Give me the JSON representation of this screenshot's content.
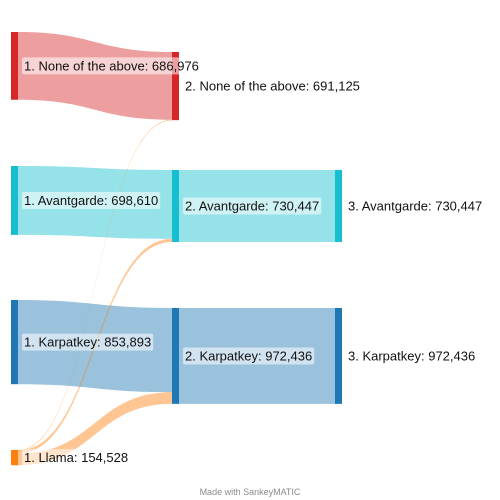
{
  "chart_data": {
    "type": "sankey",
    "colors": {
      "none": "#d62728",
      "avant": "#17becf",
      "karp": "#1f77b4",
      "llama": "#ff7f0e"
    },
    "nodes": [
      {
        "id": "n1",
        "label": "1. None of the above",
        "value": 686976,
        "stage": 1,
        "color_key": "none"
      },
      {
        "id": "a1",
        "label": "1. Avantgarde",
        "value": 698610,
        "stage": 1,
        "color_key": "avant"
      },
      {
        "id": "k1",
        "label": "1. Karpatkey",
        "value": 853893,
        "stage": 1,
        "color_key": "karp"
      },
      {
        "id": "l1",
        "label": "1. Llama",
        "value": 154528,
        "stage": 1,
        "color_key": "llama"
      },
      {
        "id": "n2",
        "label": "2. None of the above",
        "value": 691125,
        "stage": 2,
        "color_key": "none"
      },
      {
        "id": "a2",
        "label": "2. Avantgarde",
        "value": 730447,
        "stage": 2,
        "color_key": "avant"
      },
      {
        "id": "k2",
        "label": "2. Karpatkey",
        "value": 972436,
        "stage": 2,
        "color_key": "karp"
      },
      {
        "id": "a3",
        "label": "3. Avantgarde",
        "value": 730447,
        "stage": 3,
        "color_key": "avant"
      },
      {
        "id": "k3",
        "label": "3. Karpatkey",
        "value": 972436,
        "stage": 3,
        "color_key": "karp"
      }
    ],
    "links": [
      {
        "source": "n1",
        "target": "n2",
        "value": 686976
      },
      {
        "source": "a1",
        "target": "a2",
        "value": 698610
      },
      {
        "source": "k1",
        "target": "k2",
        "value": 853893
      },
      {
        "source": "l1",
        "target": "n2",
        "value": 4149
      },
      {
        "source": "l1",
        "target": "a2",
        "value": 31837
      },
      {
        "source": "l1",
        "target": "k2",
        "value": 118543
      },
      {
        "source": "a2",
        "target": "a3",
        "value": 730447
      },
      {
        "source": "k2",
        "target": "k3",
        "value": 972436
      }
    ]
  },
  "footer": {
    "credit": "Made with SankeyMATIC"
  }
}
